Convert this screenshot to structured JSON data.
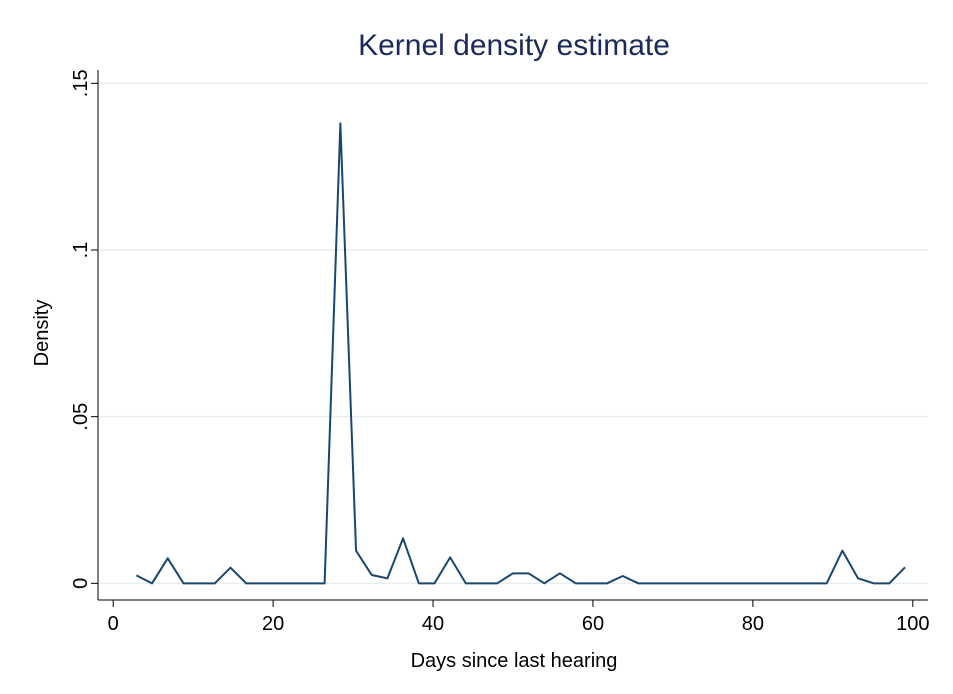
{
  "chart_data": {
    "type": "line",
    "title": "Kernel density estimate",
    "x_label": "Days since last hearing",
    "y_label": "Density",
    "x": [
      2.9,
      4.86,
      6.82,
      8.79,
      10.75,
      12.71,
      14.67,
      16.63,
      18.6,
      20.56,
      22.52,
      24.48,
      26.44,
      28.41,
      30.37,
      32.33,
      34.29,
      36.25,
      38.22,
      40.18,
      42.14,
      44.1,
      46.06,
      48.03,
      49.99,
      51.95,
      53.91,
      55.87,
      57.84,
      59.8,
      61.76,
      63.72,
      65.68,
      67.65,
      69.61,
      71.57,
      73.53,
      75.49,
      77.46,
      79.42,
      81.38,
      83.34,
      85.3,
      87.27,
      89.23,
      91.19,
      93.15,
      95.11,
      97.07,
      99.03
    ],
    "series": [
      {
        "name": "Density",
        "color": "#1a476f",
        "values": [
          0.0024,
          0,
          0.0075,
          0,
          0,
          0,
          0.0047,
          0,
          0,
          0,
          0,
          0,
          0,
          0.138,
          0.0098,
          0.0025,
          0.0015,
          0.0135,
          0,
          0,
          0.0078,
          0,
          0,
          0,
          0.003,
          0.003,
          0,
          0.003,
          0,
          0,
          0,
          0.0022,
          0,
          0,
          0,
          0,
          0,
          0,
          0,
          0,
          0,
          0,
          0,
          0,
          0,
          0.0098,
          0.0015,
          0,
          0,
          0.0048
        ]
      }
    ],
    "xlim": [
      -1.9,
      101.9
    ],
    "ylim": [
      -0.005,
      0.154
    ],
    "xticks": [
      0,
      20,
      40,
      60,
      80,
      100
    ],
    "yticks": [
      0,
      {
        "value": 0.05,
        "label": ".05"
      },
      {
        "value": 0.1,
        "label": ".1"
      },
      {
        "value": 0.15,
        "label": ".15"
      }
    ],
    "grid": true
  }
}
